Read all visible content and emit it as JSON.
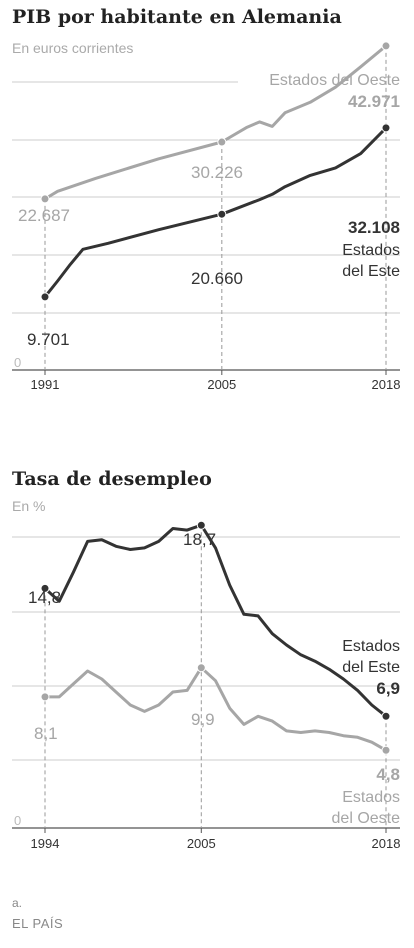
{
  "colors": {
    "dark": "#333333",
    "light": "#a6a6a6",
    "grid": "#cccccc",
    "axis": "#555555"
  },
  "footnote": "a.",
  "source": "EL PAÍS",
  "chart_data": [
    {
      "type": "line",
      "title": "PIB por habitante en Alemania",
      "subtitle": "En euros corrientes",
      "zero_label": "0",
      "xlim": [
        1991,
        2018
      ],
      "ylim": [
        0,
        48000
      ],
      "grid": true,
      "x_ticks": [
        "1991",
        "2005",
        "2018"
      ],
      "x_tick_values": [
        1991,
        2005,
        2018
      ],
      "series": [
        {
          "name": "Estados del Oeste",
          "color": "light",
          "x": [
            1991,
            1992,
            1995,
            2000,
            2005,
            2007,
            2008,
            2009,
            2010,
            2012,
            2014,
            2016,
            2018
          ],
          "y": [
            22687,
            23700,
            25400,
            28000,
            30226,
            32200,
            32900,
            32300,
            34100,
            35500,
            37500,
            40200,
            42971
          ],
          "labels": [
            {
              "x": 1991,
              "y": 22687,
              "text": "22.687"
            },
            {
              "x": 2005,
              "y": 30226,
              "text": "30.226"
            },
            {
              "x": 2018,
              "y": 42971,
              "text": "42.971"
            }
          ]
        },
        {
          "name": "Estados del Este",
          "color": "dark",
          "x": [
            1991,
            1992,
            1993,
            1994,
            1996,
            2000,
            2005,
            2008,
            2009,
            2010,
            2012,
            2014,
            2016,
            2018
          ],
          "y": [
            9701,
            11800,
            14000,
            16000,
            16800,
            18600,
            20660,
            22600,
            23300,
            24300,
            25800,
            26800,
            28700,
            32108
          ],
          "labels": [
            {
              "x": 1991,
              "y": 9701,
              "text": "9.701"
            },
            {
              "x": 2005,
              "y": 20660,
              "text": "20.660"
            },
            {
              "x": 2018,
              "y": 32108,
              "text": "32.108"
            }
          ]
        }
      ],
      "series_labels": {
        "west": "Estados del Oeste",
        "east_1": "Estados",
        "east_2": "del Este"
      }
    },
    {
      "type": "line",
      "title": "Tasa de desempleo",
      "subtitle": "En %",
      "zero_label": "0",
      "xlim": [
        1994,
        2018
      ],
      "ylim": [
        0,
        21
      ],
      "grid": true,
      "x_ticks": [
        "1994",
        "2005",
        "2018"
      ],
      "x_tick_values": [
        1994,
        2005,
        2018
      ],
      "series": [
        {
          "name": "Estados del Este",
          "color": "dark",
          "x": [
            1994,
            1995,
            1996,
            1997,
            1998,
            1999,
            2000,
            2001,
            2002,
            2003,
            2004,
            2005,
            2006,
            2007,
            2008,
            2009,
            2010,
            2011,
            2012,
            2013,
            2014,
            2015,
            2016,
            2017,
            2018
          ],
          "y": [
            14.8,
            14.0,
            15.8,
            17.7,
            17.8,
            17.4,
            17.2,
            17.3,
            17.7,
            18.5,
            18.4,
            18.7,
            17.3,
            15.0,
            13.2,
            13.1,
            12.0,
            11.3,
            10.7,
            10.3,
            9.8,
            9.2,
            8.5,
            7.6,
            6.9
          ],
          "labels": [
            {
              "x": 1994,
              "y": 14.8,
              "text": "14,8"
            },
            {
              "x": 2005,
              "y": 18.7,
              "text": "18,7"
            },
            {
              "x": 2018,
              "y": 6.9,
              "text": "6,9"
            }
          ]
        },
        {
          "name": "Estados del Oeste",
          "color": "light",
          "x": [
            1994,
            1995,
            1996,
            1997,
            1998,
            1999,
            2000,
            2001,
            2002,
            2003,
            2004,
            2005,
            2006,
            2007,
            2008,
            2009,
            2010,
            2011,
            2012,
            2013,
            2014,
            2015,
            2016,
            2017,
            2018
          ],
          "y": [
            8.1,
            8.1,
            8.9,
            9.7,
            9.2,
            8.4,
            7.6,
            7.2,
            7.6,
            8.4,
            8.5,
            9.9,
            9.1,
            7.4,
            6.4,
            6.9,
            6.6,
            6.0,
            5.9,
            6.0,
            5.9,
            5.7,
            5.6,
            5.3,
            4.8
          ],
          "labels": [
            {
              "x": 1994,
              "y": 8.1,
              "text": "8,1"
            },
            {
              "x": 2005,
              "y": 9.9,
              "text": "9,9"
            },
            {
              "x": 2018,
              "y": 4.8,
              "text": "4,8"
            }
          ]
        }
      ],
      "series_labels": {
        "east_1": "Estados",
        "east_2": "del Este",
        "west_1": "Estados",
        "west_2": "del Oeste"
      }
    }
  ]
}
